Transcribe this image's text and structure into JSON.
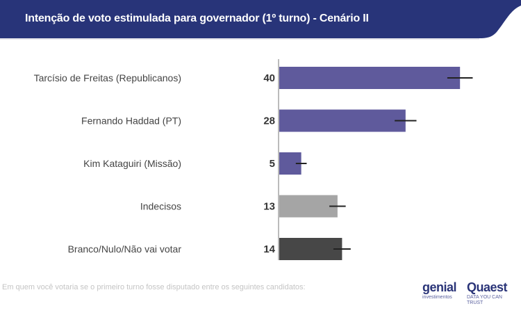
{
  "header": {
    "title": "Intenção de voto estimulada para governador (1º turno) - Cenário II"
  },
  "footnote": "Em quem você votaria se o primeiro turno fosse disputado entre os seguintes candidatos:",
  "logos": {
    "genial": "genial",
    "genial_sub": "investimentos",
    "quaest": "Quaest",
    "quaest_sub": "DATA YOU CAN TRUST"
  },
  "colors": {
    "header": "#283479",
    "candidate": "#5f5a9c",
    "undecided": "#a5a5a5",
    "blank": "#474747"
  },
  "chart_data": {
    "type": "bar",
    "orientation": "horizontal",
    "title": "Intenção de voto estimulada para governador (1º turno) - Cenário II",
    "categories": [
      "Tarcísio de Freitas (Republicanos)",
      "Fernando Haddad (PT)",
      "Kim Kataguiri (Missão)",
      "Indecisos",
      "Branco/Nulo/Não vai votar"
    ],
    "values": [
      40,
      28,
      5,
      13,
      14
    ],
    "error": [
      2.8,
      2.4,
      1.2,
      1.8,
      1.9
    ],
    "bar_colors": [
      "#5f5a9c",
      "#5f5a9c",
      "#5f5a9c",
      "#a5a5a5",
      "#474747"
    ],
    "xlim": [
      0,
      50
    ],
    "grid": false
  }
}
